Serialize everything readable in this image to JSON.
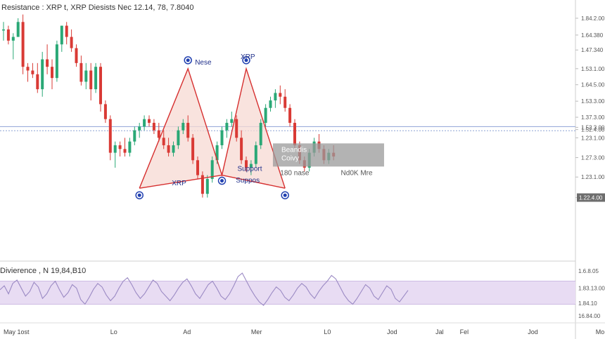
{
  "header": {
    "title": "Resistance : XRP t, XRP Diesists Nec 12.14, 78, 7.8040"
  },
  "oscillator": {
    "label": "Divierence , N 19,84,B10"
  },
  "colors": {
    "up": "#2aa876",
    "down": "#d93a35",
    "pattern_line": "#d62f2f",
    "pattern_fill": "#f7d9d3",
    "osc_line": "#9b8ac4",
    "osc_band": "#e8dcf3",
    "marker": "#2140b0",
    "hline": "#8ea3d6"
  },
  "chart_data": {
    "type": "candlestick",
    "title": "Resistance : XRP t, XRP Diesists Nec 12.14, 78, 7.8040",
    "ylim": [
      1.2,
      1.88
    ],
    "y_ticks": [
      "1.84.2.00",
      "1.64.380",
      "1.47.340",
      "1.53.1.00",
      "1.64.5.00",
      "1.53.3.00",
      "1.37.3.00",
      "1.52.3.00",
      "1.52.4.00",
      "1.23.1.00",
      "1.27.3.00",
      "1.23.1.00"
    ],
    "y_tick_values": [
      1.85,
      1.805,
      1.765,
      1.715,
      1.672,
      1.628,
      1.585,
      1.558,
      1.552,
      1.53,
      1.477,
      1.425
    ],
    "current_price_label": "1.22.4.00",
    "current_price_value": 1.37,
    "horizontal_levels": [
      1.56,
      1.549
    ],
    "x_ticks": [
      "May  1ost",
      "Lo",
      "Ad",
      "Mer",
      "L0",
      "Jod",
      "Jal",
      "Fel",
      "Jod",
      "Mo",
      "Mo"
    ],
    "x_tick_positions": [
      0,
      22,
      37,
      51,
      66,
      79,
      89,
      94,
      108,
      122,
      136
    ],
    "candles": [
      [
        1.82,
        1.84,
        1.79,
        1.82
      ],
      [
        1.82,
        1.83,
        1.78,
        1.79
      ],
      [
        1.79,
        1.81,
        1.74,
        1.8
      ],
      [
        1.8,
        1.85,
        1.8,
        1.84
      ],
      [
        1.84,
        1.86,
        1.7,
        1.72
      ],
      [
        1.72,
        1.73,
        1.68,
        1.71
      ],
      [
        1.71,
        1.73,
        1.69,
        1.7
      ],
      [
        1.7,
        1.73,
        1.65,
        1.66
      ],
      [
        1.66,
        1.76,
        1.64,
        1.74
      ],
      [
        1.74,
        1.78,
        1.7,
        1.72
      ],
      [
        1.72,
        1.74,
        1.66,
        1.69
      ],
      [
        1.69,
        1.79,
        1.68,
        1.78
      ],
      [
        1.78,
        1.83,
        1.76,
        1.83
      ],
      [
        1.83,
        1.84,
        1.78,
        1.8
      ],
      [
        1.8,
        1.82,
        1.76,
        1.77
      ],
      [
        1.77,
        1.78,
        1.72,
        1.73
      ],
      [
        1.73,
        1.75,
        1.67,
        1.68
      ],
      [
        1.68,
        1.73,
        1.66,
        1.71
      ],
      [
        1.71,
        1.73,
        1.63,
        1.66
      ],
      [
        1.66,
        1.73,
        1.65,
        1.72
      ],
      [
        1.72,
        1.73,
        1.6,
        1.62
      ],
      [
        1.62,
        1.63,
        1.57,
        1.58
      ],
      [
        1.58,
        1.59,
        1.47,
        1.49
      ],
      [
        1.49,
        1.52,
        1.45,
        1.51
      ],
      [
        1.51,
        1.52,
        1.48,
        1.5
      ],
      [
        1.5,
        1.53,
        1.48,
        1.49
      ],
      [
        1.49,
        1.53,
        1.48,
        1.52
      ],
      [
        1.52,
        1.56,
        1.51,
        1.55
      ],
      [
        1.55,
        1.57,
        1.53,
        1.56
      ],
      [
        1.56,
        1.59,
        1.55,
        1.58
      ],
      [
        1.58,
        1.59,
        1.56,
        1.57
      ],
      [
        1.57,
        1.58,
        1.54,
        1.55
      ],
      [
        1.55,
        1.57,
        1.52,
        1.53
      ],
      [
        1.53,
        1.55,
        1.5,
        1.51
      ],
      [
        1.51,
        1.53,
        1.48,
        1.49
      ],
      [
        1.49,
        1.52,
        1.48,
        1.51
      ],
      [
        1.51,
        1.56,
        1.5,
        1.55
      ],
      [
        1.55,
        1.58,
        1.54,
        1.57
      ],
      [
        1.57,
        1.59,
        1.52,
        1.53
      ],
      [
        1.53,
        1.54,
        1.46,
        1.47
      ],
      [
        1.47,
        1.48,
        1.42,
        1.43
      ],
      [
        1.43,
        1.44,
        1.37,
        1.38
      ],
      [
        1.38,
        1.43,
        1.37,
        1.42
      ],
      [
        1.42,
        1.48,
        1.41,
        1.47
      ],
      [
        1.47,
        1.52,
        1.46,
        1.51
      ],
      [
        1.51,
        1.56,
        1.5,
        1.55
      ],
      [
        1.55,
        1.58,
        1.53,
        1.57
      ],
      [
        1.57,
        1.6,
        1.56,
        1.58
      ],
      [
        1.58,
        1.59,
        1.52,
        1.53
      ],
      [
        1.53,
        1.55,
        1.46,
        1.47
      ],
      [
        1.47,
        1.48,
        1.44,
        1.45
      ],
      [
        1.45,
        1.47,
        1.43,
        1.46
      ],
      [
        1.46,
        1.52,
        1.45,
        1.51
      ],
      [
        1.51,
        1.58,
        1.5,
        1.57
      ],
      [
        1.57,
        1.62,
        1.56,
        1.61
      ],
      [
        1.61,
        1.64,
        1.6,
        1.63
      ],
      [
        1.63,
        1.66,
        1.61,
        1.65
      ],
      [
        1.65,
        1.67,
        1.62,
        1.64
      ],
      [
        1.64,
        1.66,
        1.6,
        1.61
      ],
      [
        1.61,
        1.62,
        1.56,
        1.57
      ],
      [
        1.57,
        1.58,
        1.5,
        1.51
      ],
      [
        1.51,
        1.52,
        1.46,
        1.47
      ],
      [
        1.47,
        1.48,
        1.44,
        1.45
      ],
      [
        1.45,
        1.5,
        1.44,
        1.49
      ],
      [
        1.49,
        1.53,
        1.48,
        1.52
      ],
      [
        1.52,
        1.54,
        1.49,
        1.5
      ],
      [
        1.5,
        1.51,
        1.46,
        1.47
      ],
      [
        1.47,
        1.5,
        1.46,
        1.49
      ],
      [
        1.49,
        1.51,
        1.47,
        1.48
      ]
    ],
    "pattern": {
      "points": [
        [
          28,
          1.395
        ],
        [
          38,
          1.715
        ],
        [
          45,
          1.43
        ],
        [
          50,
          1.715
        ],
        [
          58,
          1.395
        ]
      ],
      "labels": [
        "XRP",
        "Nese",
        "Support",
        "XRP",
        "Suppos"
      ]
    },
    "annotation_box": {
      "lines": [
        "Beandis",
        "Coivy"
      ]
    },
    "below_labels": [
      "180 nase",
      "Nd0K Mre"
    ],
    "oscillator": {
      "label": "Divierence , N 19,84,B10",
      "ylim": [
        0,
        100
      ],
      "band": [
        30,
        70
      ],
      "y_ticks": [
        "1.6.8.05",
        "1.83.13.00",
        "1.84.10",
        "16.84.00"
      ],
      "y_tick_values": [
        88,
        58,
        32,
        10
      ],
      "values": [
        55,
        62,
        48,
        66,
        72,
        58,
        44,
        52,
        68,
        60,
        40,
        48,
        62,
        70,
        55,
        42,
        50,
        64,
        58,
        38,
        30,
        42,
        56,
        66,
        60,
        46,
        36,
        44,
        58,
        70,
        76,
        64,
        50,
        40,
        48,
        60,
        72,
        66,
        52,
        44,
        36,
        46,
        58,
        68,
        74,
        62,
        48,
        40,
        52,
        64,
        70,
        58,
        44,
        38,
        48,
        62,
        78,
        84,
        70,
        56,
        44,
        34,
        28,
        38,
        50,
        60,
        54,
        42,
        36,
        46,
        58,
        66,
        60,
        48,
        40,
        52,
        62,
        70,
        80,
        74,
        60,
        46,
        36,
        30,
        40,
        52,
        64,
        58,
        44,
        38,
        50,
        62,
        56,
        40,
        34,
        44,
        54
      ]
    }
  }
}
